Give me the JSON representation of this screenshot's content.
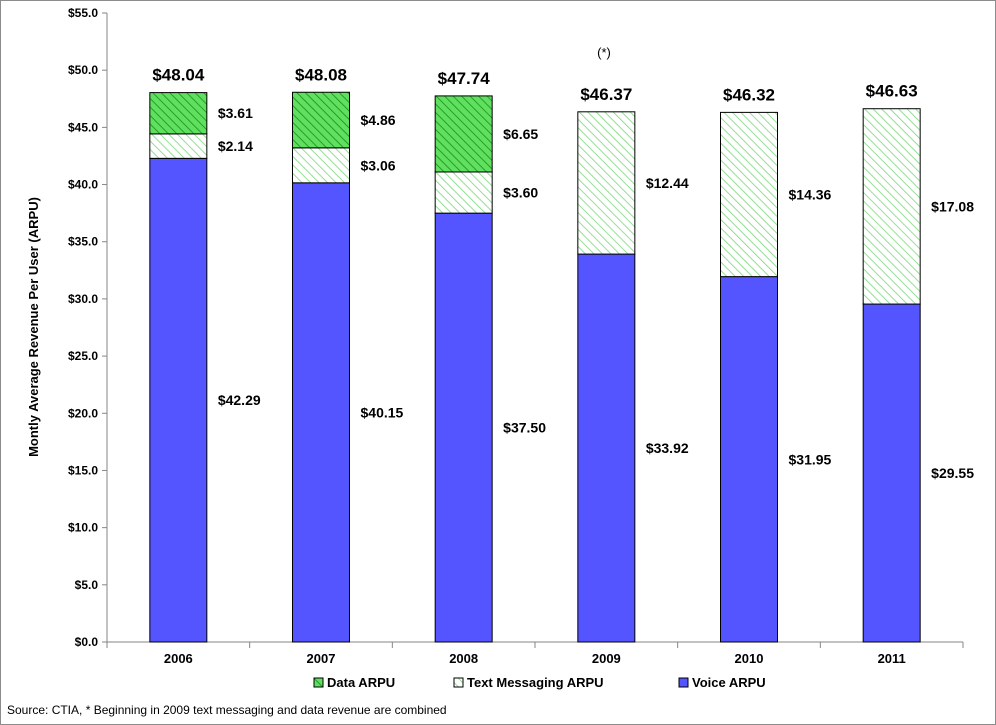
{
  "chart_data": {
    "type": "bar",
    "stacked": true,
    "categories": [
      "2006",
      "2007",
      "2008",
      "2009",
      "2010",
      "2011"
    ],
    "series": [
      {
        "name": "Voice ARPU",
        "values": [
          42.29,
          40.15,
          37.5,
          33.92,
          31.95,
          29.55
        ],
        "labels": [
          "$42.29",
          "$40.15",
          "$37.50",
          "$33.92",
          "$31.95",
          "$29.55"
        ],
        "color": "#5555ff",
        "pattern": "solid"
      },
      {
        "name": "Text Messaging ARPU",
        "values": [
          2.14,
          3.06,
          3.6,
          12.44,
          14.36,
          17.08
        ],
        "labels": [
          "$2.14",
          "$3.06",
          "$3.60",
          "$12.44",
          "$14.36",
          "$17.08"
        ],
        "color": "#66dd66",
        "pattern": "light-diagonal"
      },
      {
        "name": "Data ARPU",
        "values": [
          3.61,
          4.86,
          6.65,
          null,
          null,
          null
        ],
        "labels": [
          "$3.61",
          "$4.86",
          "$6.65",
          "",
          "",
          ""
        ],
        "color": "#55dd55",
        "pattern": "dense-diagonal"
      }
    ],
    "totals": [
      "$48.04",
      "$48.08",
      "$47.74",
      "$46.37",
      "$46.32",
      "$46.63"
    ],
    "ylabel": "Montly  Average Revenue Per User (ARPU)",
    "xlabel": "",
    "ylim": [
      0,
      55
    ],
    "yticks": [
      "$0.0",
      "$5.0",
      "$10.0",
      "$15.0",
      "$20.0",
      "$25.0",
      "$30.0",
      "$35.0",
      "$40.0",
      "$45.0",
      "$50.0",
      "$55.0"
    ],
    "grid": false,
    "legend_position": "bottom",
    "legend": [
      "Data ARPU",
      "Text Messaging ARPU",
      "Voice ARPU"
    ],
    "annotation": "(*)",
    "source": "Source: CTIA, * Beginning in 2009 text messaging and data revenue are combined"
  }
}
